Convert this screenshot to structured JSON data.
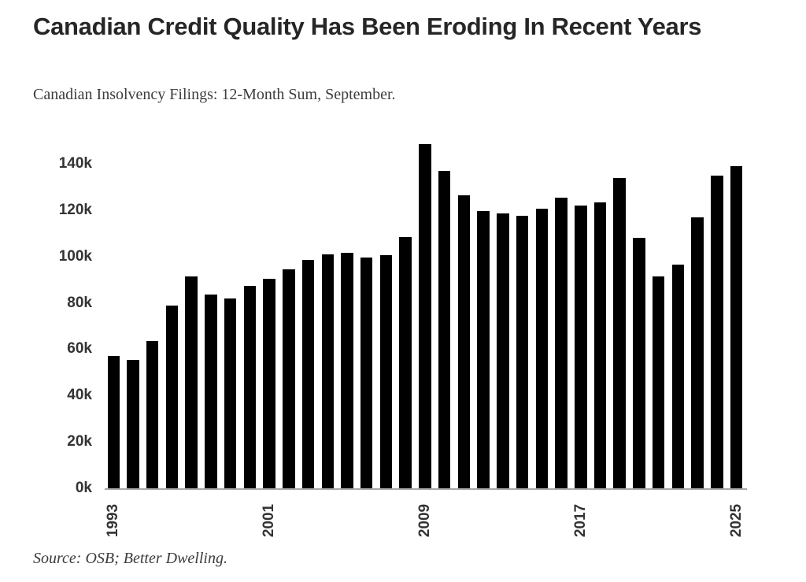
{
  "header": {
    "title": "Canadian Credit Quality Has Been Eroding In Recent Years",
    "subtitle": "Canadian Insolvency Filings: 12-Month Sum, September."
  },
  "footer": {
    "source": "Source: OSB; Better Dwelling."
  },
  "colors": {
    "bar": "#000000",
    "title_text": "#262626",
    "axis_text": "#333333",
    "axis_line": "#a8a8a8",
    "background": "#ffffff"
  },
  "chart_data": {
    "type": "bar",
    "title": "Canadian Credit Quality Has Been Eroding In Recent Years",
    "subtitle": "Canadian Insolvency Filings: 12-Month Sum, September.",
    "categories": [
      "1993",
      "1994",
      "1995",
      "1996",
      "1997",
      "1998",
      "1999",
      "2000",
      "2001",
      "2002",
      "2003",
      "2004",
      "2005",
      "2006",
      "2007",
      "2008",
      "2009",
      "2010",
      "2011",
      "2012",
      "2013",
      "2014",
      "2015",
      "2016",
      "2017",
      "2018",
      "2019",
      "2020",
      "2021",
      "2022",
      "2023",
      "2024",
      "2025"
    ],
    "values": [
      57000,
      55500,
      63500,
      79000,
      91500,
      83500,
      82000,
      87500,
      90500,
      94500,
      98500,
      101000,
      101500,
      99500,
      100500,
      108500,
      148500,
      137000,
      126500,
      119500,
      118500,
      117500,
      120500,
      125500,
      122000,
      123500,
      134000,
      108000,
      91500,
      96500,
      117000,
      135000,
      139000
    ],
    "xlabel": "",
    "ylabel": "",
    "ylim": [
      0,
      153000
    ],
    "y_ticks": [
      0,
      20000,
      40000,
      60000,
      80000,
      100000,
      120000,
      140000
    ],
    "y_tick_labels": [
      "0k",
      "20k",
      "40k",
      "60k",
      "80k",
      "100k",
      "120k",
      "140k"
    ],
    "x_tick_indices": [
      0,
      8,
      16,
      24,
      32
    ],
    "x_tick_labels": [
      "1993",
      "2001",
      "2009",
      "2017",
      "2025"
    ],
    "grid": false,
    "legend_position": "none",
    "bar_color": "#000000",
    "source": "Source: OSB; Better Dwelling."
  }
}
